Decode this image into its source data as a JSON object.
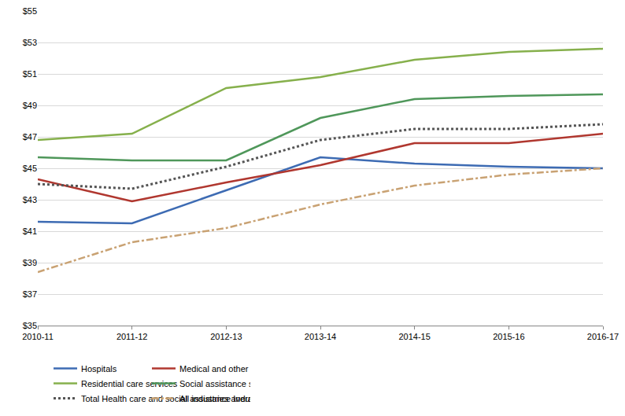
{
  "chart_data": {
    "type": "line",
    "categories": [
      "2010-11",
      "2011-12",
      "2012-13",
      "2013-14",
      "2014-15",
      "2015-16",
      "2016-17"
    ],
    "series": [
      {
        "name": "Hospitals",
        "color": "#3D6BB3",
        "line_style": "solid",
        "values": [
          41.6,
          41.5,
          43.6,
          45.7,
          45.3,
          45.1,
          45.0
        ]
      },
      {
        "name": "Medical and other health care services",
        "color": "#B0372F",
        "line_style": "solid",
        "values": [
          44.3,
          42.9,
          44.1,
          45.2,
          46.6,
          46.6,
          47.2
        ]
      },
      {
        "name": "Residential care services",
        "color": "#86B04C",
        "line_style": "solid",
        "values": [
          46.8,
          47.2,
          50.1,
          50.8,
          51.9,
          52.4,
          52.6
        ]
      },
      {
        "name": "Social assistance services",
        "color": "#4F975A",
        "line_style": "solid",
        "values": [
          45.7,
          45.5,
          45.5,
          48.2,
          49.4,
          49.6,
          49.7
        ]
      },
      {
        "name": "Total Health care and social assistance Industry",
        "color": "#555555",
        "line_style": "dot",
        "values": [
          44.0,
          43.7,
          45.1,
          46.8,
          47.5,
          47.5,
          47.8
        ]
      },
      {
        "name": "All industries average",
        "color": "#C9A273",
        "line_style": "dashdot",
        "values": [
          38.4,
          40.3,
          41.2,
          42.7,
          43.9,
          44.6,
          45.0
        ]
      }
    ],
    "ylim": [
      35,
      55
    ],
    "yticks": [
      {
        "value": 35,
        "label": "$35"
      },
      {
        "value": 37,
        "label": "$37"
      },
      {
        "value": 39,
        "label": "$39"
      },
      {
        "value": 41,
        "label": "$41"
      },
      {
        "value": 43,
        "label": "$43"
      },
      {
        "value": 45,
        "label": "$45"
      },
      {
        "value": 47,
        "label": "$47"
      },
      {
        "value": 49,
        "label": "$49"
      },
      {
        "value": 51,
        "label": "$51"
      },
      {
        "value": 53,
        "label": "$53"
      },
      {
        "value": 55,
        "label": "$55"
      }
    ],
    "grid": true,
    "legend": "bottom"
  }
}
